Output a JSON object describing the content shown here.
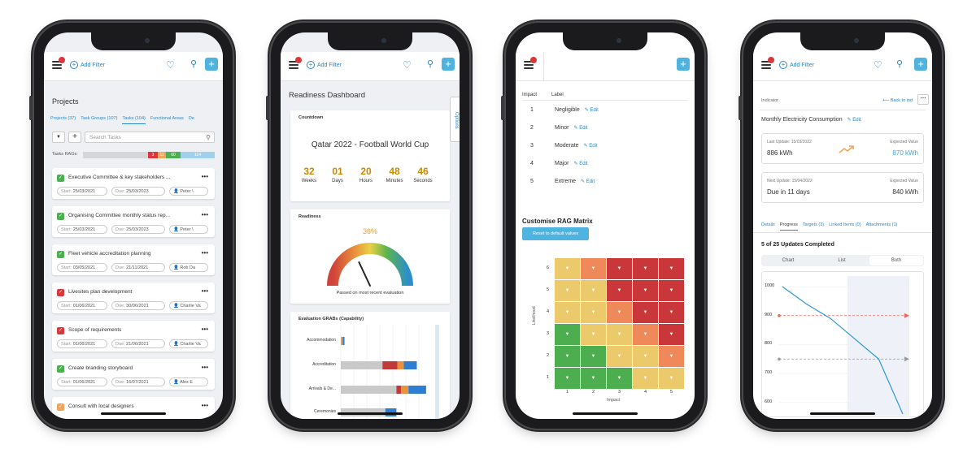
{
  "topbar": {
    "add_filter": "Add Filter"
  },
  "phone1": {
    "title": "Projects",
    "tabs": [
      "Projects (37)",
      "Task Groups (107)",
      "Tasks (104)",
      "Functional Areas",
      "De"
    ],
    "active_tab": 2,
    "search_placeholder": "Search Tasks",
    "rags_label": "Tasks RAGs:",
    "rag_counts": [
      "3",
      "11",
      "60",
      "114"
    ],
    "tasks": [
      {
        "name": "Executive Committee & key stakeholders ...",
        "start": "25/03/2021",
        "due": "25/03/2023",
        "owner": "Peter \\",
        "status_color": "#4caf50"
      },
      {
        "name": "Organising Committee monthly status rep...",
        "start": "25/03/2021",
        "due": "25/03/2023",
        "owner": "Peter \\",
        "status_color": "#4caf50"
      },
      {
        "name": "Fleet vehicle accreditation planning",
        "start": "03/05/2021",
        "due": "21/11/2021",
        "owner": "Rob Da",
        "status_color": "#4caf50"
      },
      {
        "name": "Livesites plan development",
        "start": "01/06/2021",
        "due": "30/06/2021",
        "owner": "Charlie Va",
        "status_color": "#d9363e"
      },
      {
        "name": "Scope of requirements",
        "start": "01/06/2021",
        "due": "21/06/2021",
        "owner": "Charlie Va",
        "status_color": "#d9363e"
      },
      {
        "name": "Create branding storyboard",
        "start": "01/06/2021",
        "due": "16/07/2021",
        "owner": "Alex E",
        "status_color": "#4caf50"
      },
      {
        "name": "Consult with local designers",
        "start": "",
        "due": "",
        "owner": "",
        "status_color": "#f0a35a"
      }
    ],
    "start_label": "Start:",
    "due_label": "Due:"
  },
  "phone2": {
    "title": "Readiness Dashboard",
    "options": "Options",
    "countdown_label": "Countdown",
    "event": "Qatar 2022 - Football World Cup",
    "countdown": [
      {
        "value": "32",
        "unit": "Weeks"
      },
      {
        "value": "01",
        "unit": "Days"
      },
      {
        "value": "20",
        "unit": "Hours"
      },
      {
        "value": "48",
        "unit": "Minutes"
      },
      {
        "value": "46",
        "unit": "Seconds"
      }
    ],
    "readiness_label": "Readiness",
    "readiness_pct": "36%",
    "readiness_value": 0.36,
    "passed_text": "Passed on most recent evaluation",
    "grabs_label": "Evaluation GRABs (Capability)",
    "grabs": [
      {
        "name": "Accommodation",
        "segments": [
          {
            "v": 0.02,
            "c": "#e0a060"
          },
          {
            "v": 0.02,
            "c": "#2d7dd2"
          }
        ]
      },
      {
        "name": "Accreditation",
        "segments": [
          {
            "v": 0.45,
            "c": "#c9c9c9"
          },
          {
            "v": 0.16,
            "c": "#c0393b"
          },
          {
            "v": 0.07,
            "c": "#e8923a"
          },
          {
            "v": 0.14,
            "c": "#2d7dd2"
          }
        ]
      },
      {
        "name": "Arrivals & De...",
        "segments": [
          {
            "v": 0.6,
            "c": "#c9c9c9"
          },
          {
            "v": 0.05,
            "c": "#c0393b"
          },
          {
            "v": 0.08,
            "c": "#e8923a"
          },
          {
            "v": 0.19,
            "c": "#2d7dd2"
          }
        ]
      },
      {
        "name": "Ceremonies",
        "segments": [
          {
            "v": 0.48,
            "c": "#c9c9c9"
          },
          {
            "v": 0.12,
            "c": "#2d7dd2"
          }
        ]
      }
    ]
  },
  "phone3": {
    "impact_header": "Impact",
    "label_header": "Label",
    "edit_label": "Edit",
    "impacts": [
      {
        "num": "1",
        "label": "Negligible"
      },
      {
        "num": "2",
        "label": "Minor"
      },
      {
        "num": "3",
        "label": "Moderate"
      },
      {
        "num": "4",
        "label": "Major"
      },
      {
        "num": "5",
        "label": "Extreme"
      }
    ],
    "rag_title": "Customise RAG Matrix",
    "reset_button": "Reset to default values",
    "y_axis_label": "Likelihood",
    "x_axis_label": "Impact",
    "y_ticks": [
      "6",
      "5",
      "4",
      "3",
      "2",
      "1"
    ],
    "x_ticks": [
      "1",
      "2",
      "3",
      "4",
      "5"
    ],
    "matrix_colors": [
      [
        "#ecc96a",
        "#f0895a",
        "#c9373a",
        "#c9373a",
        "#c9373a"
      ],
      [
        "#ecc96a",
        "#ecc96a",
        "#c9373a",
        "#c9373a",
        "#c9373a"
      ],
      [
        "#ecc96a",
        "#ecc96a",
        "#f0895a",
        "#c9373a",
        "#c9373a"
      ],
      [
        "#4cae4f",
        "#ecc96a",
        "#ecc96a",
        "#f0895a",
        "#c9373a"
      ],
      [
        "#4cae4f",
        "#4cae4f",
        "#ecc96a",
        "#ecc96a",
        "#f0895a"
      ],
      [
        "#4cae4f",
        "#4cae4f",
        "#4cae4f",
        "#ecc96a",
        "#ecc96a"
      ]
    ]
  },
  "phone4": {
    "indicator": "Indicator",
    "back": "Back to ind",
    "title": "Monthly Electricity Consumption",
    "edit_label": "Edit",
    "last_update_label": "Last Update: 15/03/2022",
    "last_update_value": "886 kWh",
    "expected_label": "Expected Value",
    "expected_value_1": "870 kWh",
    "next_update_label": "Next Update: 15/04/2022",
    "next_update_value": "Due in 11 days",
    "expected_value_2": "840 kWh",
    "tabs": [
      "Details",
      "Progress",
      "Targets (3)",
      "Linked Items (0)",
      "Attachments (1)"
    ],
    "active_tab": 1,
    "updates_completed": "5 of 25 Updates Completed",
    "view_options": [
      "Chart",
      "List",
      "Both"
    ],
    "active_view": 2
  },
  "chart_data": {
    "type": "line",
    "y_ticks": [
      "1000",
      "900",
      "800",
      "700",
      "600"
    ],
    "ylim": [
      560,
      1020
    ],
    "series": [
      {
        "x": [
          0,
          1,
          2,
          3,
          4,
          5
        ],
        "values": [
          1000,
          940,
          890,
          820,
          750,
          560
        ]
      }
    ],
    "targets": [
      {
        "values": [
          900
        ]
      },
      {
        "values": [
          750
        ]
      }
    ]
  }
}
